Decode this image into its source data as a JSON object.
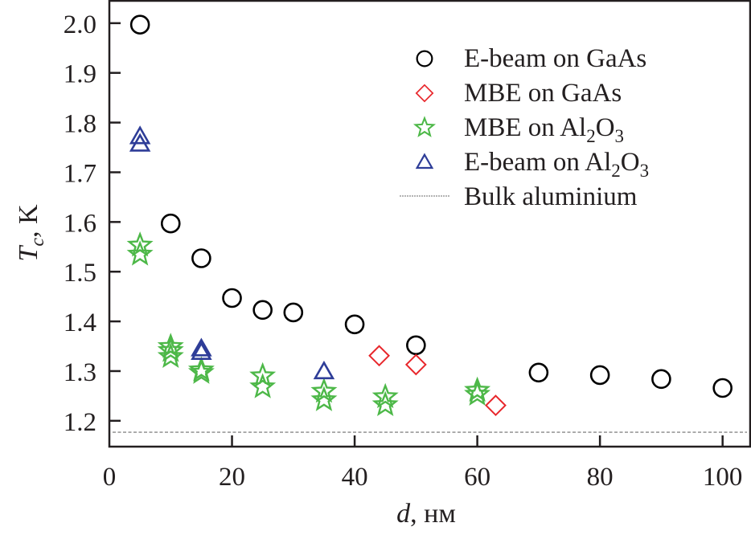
{
  "chart_data": {
    "type": "scatter",
    "title": "",
    "xlabel": {
      "var": "d",
      "unit": ", нм"
    },
    "ylabel": {
      "var": "T",
      "sub": "c",
      "unit": ", K"
    },
    "xlim": [
      0,
      104.5
    ],
    "ylim": [
      1.148,
      2.045
    ],
    "xticks": [
      0,
      20,
      40,
      60,
      80,
      100
    ],
    "xtick_labels": [
      "0",
      "20",
      "40",
      "60",
      "80",
      "100"
    ],
    "yticks": [
      1.2,
      1.3,
      1.4,
      1.5,
      1.6,
      1.7,
      1.8,
      1.9,
      2.0
    ],
    "ytick_labels": [
      "1.2",
      "1.3",
      "1.4",
      "1.5",
      "1.6",
      "1.7",
      "1.8",
      "1.9",
      "2.0"
    ],
    "grid": false,
    "legend_position": "top-right",
    "series": [
      {
        "name": "E-beam on GaAs",
        "label_parts": [
          {
            "t": "E-beam on GaAs"
          }
        ],
        "marker": "circle",
        "color": "#000000",
        "points": [
          [
            5,
            1.997
          ],
          [
            10,
            1.597
          ],
          [
            15,
            1.527
          ],
          [
            20,
            1.447
          ],
          [
            25,
            1.423
          ],
          [
            30,
            1.418
          ],
          [
            40,
            1.394
          ],
          [
            50,
            1.352
          ],
          [
            70,
            1.297
          ],
          [
            80,
            1.292
          ],
          [
            90,
            1.284
          ],
          [
            100,
            1.266
          ]
        ]
      },
      {
        "name": "MBE on GaAs",
        "label_parts": [
          {
            "t": "MBE on GaAs"
          }
        ],
        "marker": "diamond",
        "color": "#e8262b",
        "points": [
          [
            44,
            1.331
          ],
          [
            50,
            1.313
          ],
          [
            63,
            1.231
          ]
        ]
      },
      {
        "name": "MBE on Al2O3",
        "label_parts": [
          {
            "t": "MBE on Al"
          },
          {
            "t": "2",
            "sub": true
          },
          {
            "t": "O"
          },
          {
            "t": "3",
            "sub": true
          }
        ],
        "marker": "star",
        "color": "#4db848",
        "points": [
          [
            5,
            1.553
          ],
          [
            5,
            1.535
          ],
          [
            10,
            1.349
          ],
          [
            10,
            1.341
          ],
          [
            10,
            1.329
          ],
          [
            15,
            1.302
          ],
          [
            15,
            1.297
          ],
          [
            25,
            1.29
          ],
          [
            25,
            1.268
          ],
          [
            35,
            1.259
          ],
          [
            35,
            1.242
          ],
          [
            45,
            1.248
          ],
          [
            45,
            1.232
          ],
          [
            60,
            1.261
          ],
          [
            60,
            1.253
          ]
        ]
      },
      {
        "name": "E-beam on Al2O3",
        "label_parts": [
          {
            "t": "E-beam on Al"
          },
          {
            "t": "2",
            "sub": true
          },
          {
            "t": "O"
          },
          {
            "t": "3",
            "sub": true
          }
        ],
        "marker": "triangle",
        "color": "#2e3d98",
        "points": [
          [
            5,
            1.772
          ],
          [
            5,
            1.757
          ],
          [
            15,
            1.345
          ],
          [
            15,
            1.338
          ],
          [
            35,
            1.299
          ]
        ]
      }
    ],
    "reference_lines": [
      {
        "name": "Bulk aluminium",
        "label_parts": [
          {
            "t": "Bulk aluminium"
          }
        ],
        "y": 1.177,
        "style": "dashed",
        "color": "#888888"
      }
    ]
  }
}
